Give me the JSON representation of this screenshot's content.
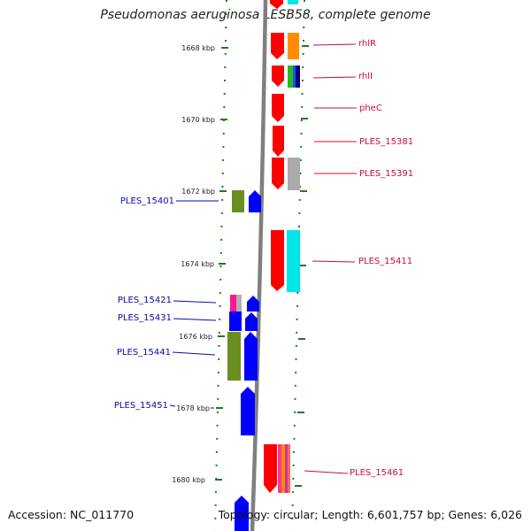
{
  "title": "Pseudomonas aeruginosa LESB58, complete genome",
  "accession": "Accession: NC_011770",
  "topology": "Topology: circular; Length: 6,601,757 bp; Genes: 6,026",
  "kbp_ticks": [
    "1668 kbp",
    "1670 kbp",
    "1672 kbp",
    "1674 kbp",
    "1676 kbp",
    "1678 kbp",
    "1680 kbp"
  ],
  "left_labels": [
    "PLES_15401",
    "PLES_15421",
    "PLES_15431",
    "PLES_15441",
    "PLES_15451"
  ],
  "right_labels": [
    "rhlR",
    "rhlI",
    "pheC",
    "PLES_15381",
    "PLES_15391",
    "PLES_15411",
    "PLES_15461"
  ],
  "colors": {
    "reverse_strand": "#ff0000",
    "forward_strand": "#0000ff",
    "left_label": "#0a0aa8",
    "right_label": "#c8102e",
    "tick": "#1f7a1f",
    "backbone": "#808080"
  }
}
